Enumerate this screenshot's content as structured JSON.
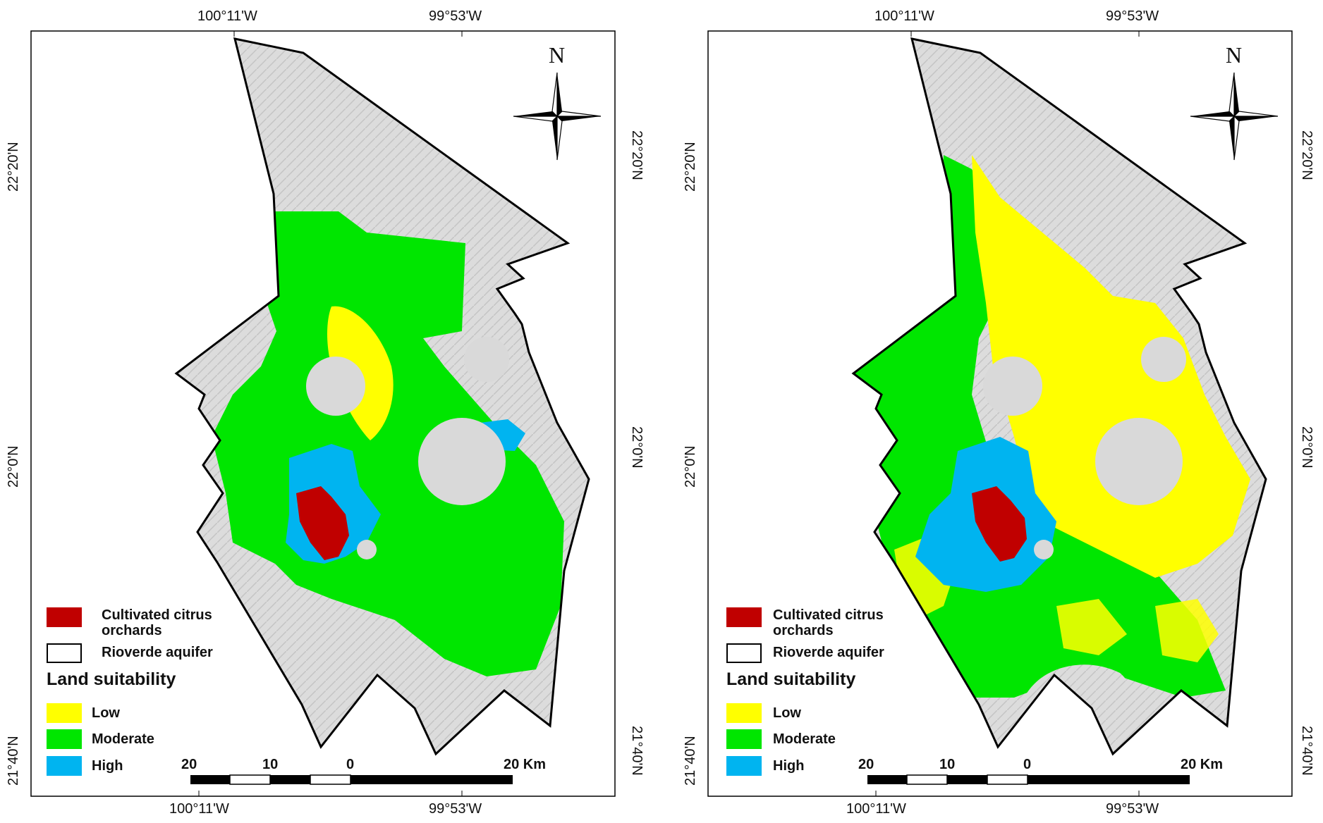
{
  "colors": {
    "citrus": "#c00000",
    "low": "#ffff00",
    "moderate": "#00e600",
    "high": "#00b4f0",
    "hillshade": "#d9d9d9",
    "boundary": "#000000"
  },
  "graticule": {
    "lon_left": "100°11'W",
    "lon_right": "99°53'W",
    "lat_top": "22°20'N",
    "lat_mid": "22°0'N",
    "lat_bottom": "21°40'N"
  },
  "north_arrow": {
    "label": "N",
    "icon": "compass-rose-icon"
  },
  "legend": {
    "citrus_label_line1": "Cultivated citrus",
    "citrus_label_line2": "orchards",
    "aquifer_label": "Rioverde aquifer",
    "title": "Land suitability",
    "low": "Low",
    "moderate": "Moderate",
    "high": "High"
  },
  "scale_bar": {
    "left": "20",
    "mid": "10",
    "zero": "0",
    "right": "20 Km"
  },
  "panels": [
    {
      "id": "left-map",
      "low_extent": "small",
      "dominant_class": "Moderate"
    },
    {
      "id": "right-map",
      "low_extent": "large",
      "dominant_class": "Moderate"
    }
  ]
}
